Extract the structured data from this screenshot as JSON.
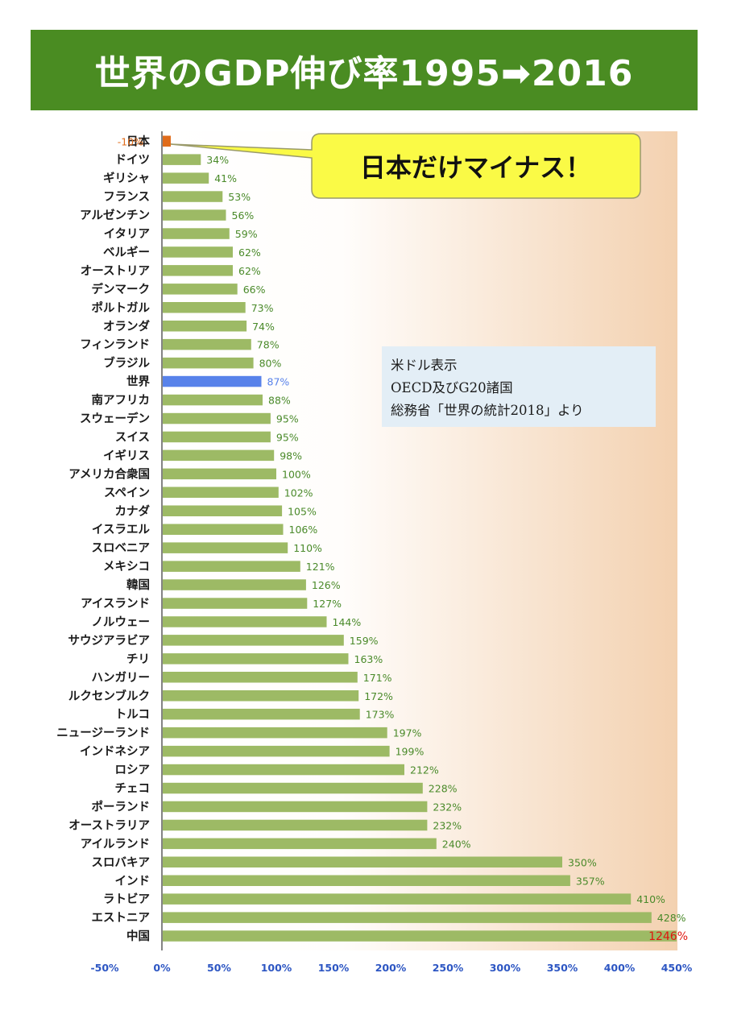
{
  "title": "世界のGDP伸び率1995➡2016",
  "callout": "日本だけマイナス！",
  "note": {
    "line1": "米ドル表示",
    "line2": "OECD及びG20諸国",
    "line3": "総務省「世界の統計2018」より"
  },
  "colors": {
    "banner": "#4a8c22",
    "bar": "#9dba65",
    "bar_highlight": "#5882ea",
    "bar_negative": "#e06c1b",
    "label_green": "#4a8a2a",
    "label_orange": "#e06c1b",
    "label_red": "#e0150f",
    "axis_tick": "#2d56c3",
    "callout_fill": "#fafa46"
  },
  "chart_data": {
    "type": "bar",
    "orientation": "horizontal",
    "categories": [
      "日本",
      "ドイツ",
      "ギリシャ",
      "フランス",
      "アルゼンチン",
      "イタリア",
      "ベルギー",
      "オーストリア",
      "デンマーク",
      "ポルトガル",
      "オランダ",
      "フィンランド",
      "ブラジル",
      "世界",
      "南アフリカ",
      "スウェーデン",
      "スイス",
      "イギリス",
      "アメリカ合衆国",
      "スペイン",
      "カナダ",
      "イスラエル",
      "スロベニア",
      "メキシコ",
      "韓国",
      "アイスランド",
      "ノルウェー",
      "サウジアラビア",
      "チリ",
      "ハンガリー",
      "ルクセンブルク",
      "トルコ",
      "ニュージーランド",
      "インドネシア",
      "ロシア",
      "チェコ",
      "ポーランド",
      "オーストラリア",
      "アイルランド",
      "スロバキア",
      "インド",
      "ラトビア",
      "エストニア",
      "中国"
    ],
    "values": [
      -10,
      34,
      41,
      53,
      56,
      59,
      62,
      62,
      66,
      73,
      74,
      78,
      80,
      87,
      88,
      95,
      95,
      98,
      100,
      102,
      105,
      106,
      110,
      121,
      126,
      127,
      144,
      159,
      163,
      171,
      172,
      173,
      197,
      199,
      212,
      228,
      232,
      232,
      240,
      350,
      357,
      410,
      428,
      1246
    ],
    "value_labels": [
      "-10%",
      "34%",
      "41%",
      "53%",
      "56%",
      "59%",
      "62%",
      "62%",
      "66%",
      "73%",
      "74%",
      "78%",
      "80%",
      "87%",
      "88%",
      "95%",
      "95%",
      "98%",
      "100%",
      "102%",
      "105%",
      "106%",
      "110%",
      "121%",
      "126%",
      "127%",
      "144%",
      "159%",
      "163%",
      "171%",
      "172%",
      "173%",
      "197%",
      "199%",
      "212%",
      "228%",
      "232%",
      "232%",
      "240%",
      "350%",
      "357%",
      "410%",
      "428%",
      "1246%"
    ],
    "xlim": [
      -50,
      450
    ],
    "xticks": [
      "-50%",
      "0%",
      "50%",
      "100%",
      "150%",
      "200%",
      "250%",
      "300%",
      "350%",
      "400%",
      "450%"
    ],
    "highlight": "世界",
    "truncated_category": "中国",
    "grid": false
  }
}
